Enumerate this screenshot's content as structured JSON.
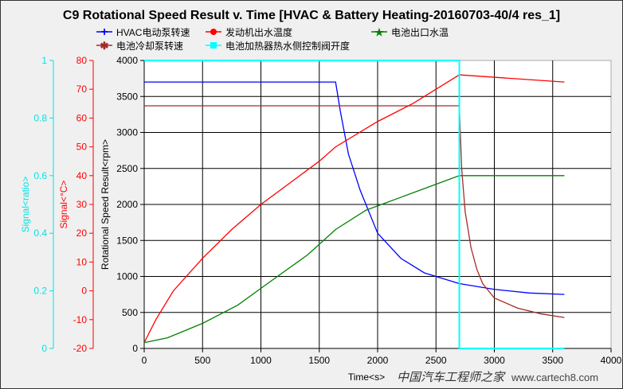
{
  "chart_data": {
    "type": "line",
    "title": "C9 Rotational Speed Result v. Time [HVAC & Battery Heating-20160703-40/4 res_1]",
    "xlabel": "Time<s>",
    "xlim": [
      0,
      4000
    ],
    "xticks": [
      0,
      500,
      1000,
      1500,
      2000,
      2500,
      3000,
      3500,
      4000
    ],
    "grid": true,
    "legend_position": "top",
    "axes": [
      {
        "id": "rpm",
        "label": "Rotational Speed Result<rpm>",
        "range": [
          0,
          4000
        ],
        "ticks": [
          0,
          500,
          1000,
          1500,
          2000,
          2500,
          3000,
          3500,
          4000
        ],
        "color": "#000000"
      },
      {
        "id": "temp",
        "label": "Signal<°C>",
        "range": [
          -20,
          80
        ],
        "ticks": [
          -20,
          -10,
          0,
          10,
          20,
          30,
          40,
          50,
          60,
          70,
          80
        ],
        "color": "#ff0000"
      },
      {
        "id": "ratio",
        "label": "Signal<ratio>",
        "range": [
          0,
          1
        ],
        "ticks": [
          0,
          0.2,
          0.4,
          0.6,
          0.8,
          1
        ],
        "color": "#00e5e5"
      }
    ],
    "series": [
      {
        "name": "HVAC电动泵转速",
        "axis": "rpm",
        "color": "#0000ff",
        "marker": "plus",
        "x": [
          0,
          1640,
          1680,
          1750,
          1850,
          2000,
          2200,
          2400,
          2600,
          2700,
          3000,
          3300,
          3600
        ],
        "y": [
          3700,
          3700,
          3300,
          2700,
          2200,
          1600,
          1250,
          1050,
          950,
          900,
          820,
          770,
          750
        ]
      },
      {
        "name": "发动机出水温度",
        "axis": "temp",
        "color": "#ff0000",
        "marker": "circle",
        "x": [
          0,
          100,
          250,
          500,
          750,
          1000,
          1250,
          1500,
          1640,
          2000,
          2300,
          2700,
          3600
        ],
        "y": [
          -18,
          -10,
          0,
          11.3,
          21.3,
          30,
          37.5,
          45,
          50,
          58.8,
          65,
          75,
          72.5
        ]
      },
      {
        "name": "电池出口水温",
        "axis": "temp",
        "color": "#008000",
        "marker": "star",
        "x": [
          0,
          200,
          500,
          800,
          1100,
          1400,
          1640,
          1900,
          2200,
          2500,
          2700,
          3600
        ],
        "y": [
          -18,
          -16.3,
          -11.3,
          -5,
          3.8,
          12.5,
          21.3,
          28,
          32.5,
          37,
          40,
          40
        ]
      },
      {
        "name": "电池冷却泵转速",
        "axis": "rpm",
        "color": "#a52a2a",
        "marker": "asterisk",
        "x": [
          0,
          2700,
          2720,
          2750,
          2800,
          2850,
          2900,
          3000,
          3200,
          3400,
          3600
        ],
        "y": [
          3370,
          3370,
          2500,
          1900,
          1400,
          1100,
          900,
          700,
          560,
          480,
          430
        ]
      },
      {
        "name": "电池加热器热水侧控制阀开度",
        "axis": "ratio",
        "color": "#00ffff",
        "marker": "square",
        "x": [
          0,
          2700,
          2700,
          3600
        ],
        "y": [
          1,
          1,
          0,
          0
        ]
      }
    ]
  },
  "watermark": {
    "line1": "中国汽车工程师之家",
    "line2": "www.cartech8.com"
  }
}
